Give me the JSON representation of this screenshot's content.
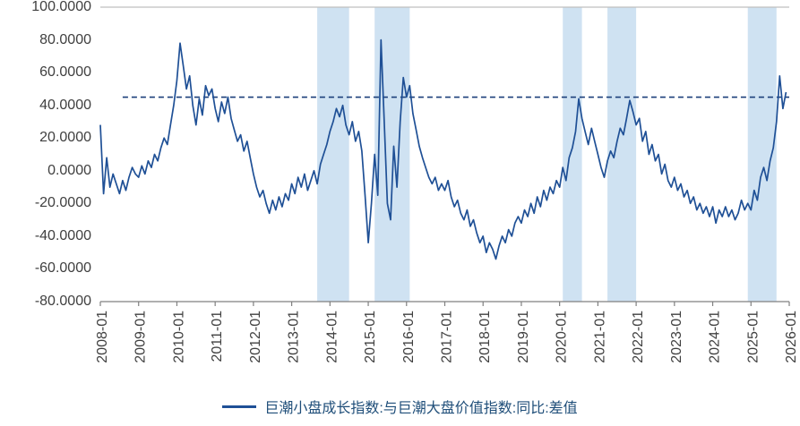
{
  "chart_data": {
    "type": "line",
    "title": "",
    "legend_label": "巨潮小盘成长指数:与巨潮大盘价值指数:同比:差值",
    "x_ticks": [
      "2008-01",
      "2009-01",
      "2010-01",
      "2011-01",
      "2012-01",
      "2013-01",
      "2014-01",
      "2015-01",
      "2016-01",
      "2017-01",
      "2018-01",
      "2019-01",
      "2020-01",
      "2021-01",
      "2022-01",
      "2023-01",
      "2024-01",
      "2025-01",
      "2026-01"
    ],
    "y_ticks": [
      "100.0000",
      "80.0000",
      "60.0000",
      "40.0000",
      "20.0000",
      "0.0000",
      "-20.0000",
      "-40.0000",
      "-60.0000",
      "-80.0000"
    ],
    "y_range": [
      -80,
      100
    ],
    "x_range": [
      "2008-01",
      "2026-01"
    ],
    "grid": false,
    "legend_position": "bottom-center",
    "line_color": "#1f5096",
    "reference_line_color": "#1b3f7a",
    "band_color": "#cfe2f2",
    "axis_color": "#808080",
    "top_border_color": "#bfbfbf",
    "tick_label_color": "#404040",
    "reference_line": {
      "value": 45,
      "start": "2008-08",
      "end": "2026-01",
      "style": "dashed"
    },
    "highlight_bands": [
      {
        "start": "2013-09",
        "end": "2014-07"
      },
      {
        "start": "2015-03",
        "end": "2016-02"
      },
      {
        "start": "2020-02",
        "end": "2020-08"
      },
      {
        "start": "2021-04",
        "end": "2022-01"
      },
      {
        "start": "2024-12",
        "end": "2025-09"
      }
    ],
    "series": [
      {
        "name": "巨潮小盘成长指数:与巨潮大盘价值指数:同比:差值",
        "start": "2008-01",
        "interval": "monthly",
        "values": [
          28,
          -14,
          8,
          -10,
          -2,
          -8,
          -14,
          -6,
          -12,
          -4,
          2,
          -2,
          -4,
          3,
          -2,
          6,
          2,
          10,
          6,
          14,
          20,
          16,
          28,
          40,
          55,
          78,
          64,
          50,
          58,
          40,
          28,
          44,
          34,
          52,
          46,
          50,
          38,
          30,
          42,
          35,
          45,
          32,
          25,
          18,
          22,
          12,
          18,
          8,
          -2,
          -10,
          -16,
          -12,
          -20,
          -26,
          -18,
          -24,
          -16,
          -22,
          -14,
          -18,
          -8,
          -14,
          -4,
          -10,
          -2,
          -12,
          -6,
          0,
          -8,
          4,
          10,
          16,
          24,
          30,
          38,
          33,
          40,
          28,
          22,
          30,
          18,
          24,
          12,
          -15,
          -44,
          -20,
          10,
          -15,
          80,
          30,
          -20,
          -30,
          15,
          -10,
          30,
          57,
          45,
          52,
          35,
          25,
          15,
          8,
          2,
          -4,
          -8,
          -4,
          -12,
          -8,
          -12,
          -6,
          -16,
          -22,
          -18,
          -26,
          -30,
          -24,
          -34,
          -30,
          -38,
          -44,
          -40,
          -50,
          -44,
          -48,
          -54,
          -46,
          -40,
          -44,
          -36,
          -40,
          -32,
          -28,
          -32,
          -24,
          -28,
          -20,
          -26,
          -16,
          -22,
          -12,
          -18,
          -10,
          -14,
          -6,
          -10,
          2,
          -6,
          8,
          14,
          24,
          44,
          32,
          24,
          16,
          26,
          18,
          10,
          2,
          -4,
          6,
          12,
          8,
          18,
          26,
          22,
          32,
          43,
          36,
          28,
          32,
          18,
          24,
          10,
          16,
          6,
          10,
          -2,
          4,
          -6,
          -10,
          -4,
          -12,
          -8,
          -16,
          -12,
          -20,
          -16,
          -24,
          -20,
          -26,
          -22,
          -28,
          -22,
          -32,
          -24,
          -28,
          -22,
          -28,
          -24,
          -30,
          -26,
          -18,
          -24,
          -20,
          -24,
          -12,
          -18,
          -4,
          2,
          -6,
          6,
          14,
          30,
          58,
          38,
          48
        ]
      }
    ]
  }
}
